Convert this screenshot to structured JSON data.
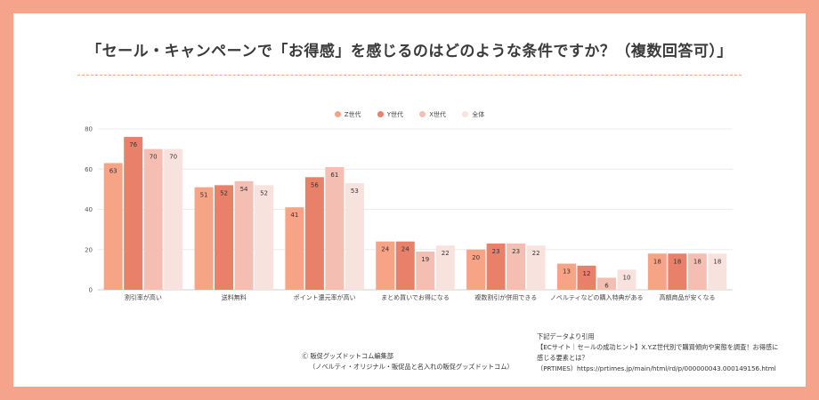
{
  "title": "「セール・キャンペーンで「お得感」を感じるのはどのような条件ですか？（複数回答可）」",
  "legend": [
    "Z世代",
    "Y世代",
    "X世代",
    "全体"
  ],
  "colors": [
    "#f6a386",
    "#e9806a",
    "#f5beb2",
    "#f7e2de"
  ],
  "chart_data": {
    "type": "bar",
    "title": "「セール・キャンペーンで「お得感」を感じるのはどのような条件ですか？（複数回答可）」",
    "categories": [
      "割引率が高い",
      "送料無料",
      "ポイント還元率が高い",
      "まとめ買いでお得になる",
      "複数割引が併用できる",
      "ノベルティなどの購入特典がある",
      "高額商品が安くなる"
    ],
    "series": [
      {
        "name": "Z世代",
        "values": [
          63,
          51,
          41,
          24,
          20,
          13,
          18
        ]
      },
      {
        "name": "Y世代",
        "values": [
          76,
          52,
          56,
          24,
          23,
          12,
          18
        ]
      },
      {
        "name": "X世代",
        "values": [
          70,
          54,
          61,
          19,
          23,
          6,
          18
        ]
      },
      {
        "name": "全体",
        "values": [
          70,
          52,
          53,
          22,
          22,
          10,
          18
        ]
      }
    ],
    "y_ticks": [
      0,
      20,
      40,
      60,
      80
    ],
    "ylim": [
      0,
      80
    ],
    "grid": true,
    "legend_position": "top"
  },
  "credit": {
    "line1": "Ⓒ 販促グッズドットコム編集部",
    "line2": "（ノベルティ・オリジナル・販促品と名入れの販促グッズドットコム）"
  },
  "source": {
    "line1": "下記データより引用",
    "line2": "【ECサイト｜セールの成功ヒント】X.Y.Z世代別で購買傾向や実態を調査！お得感に",
    "line3": "感じる要素とは？",
    "line4": "（PRTIMES）https://prtimes.jp/main/html/rd/p/000000043.000149156.html"
  }
}
